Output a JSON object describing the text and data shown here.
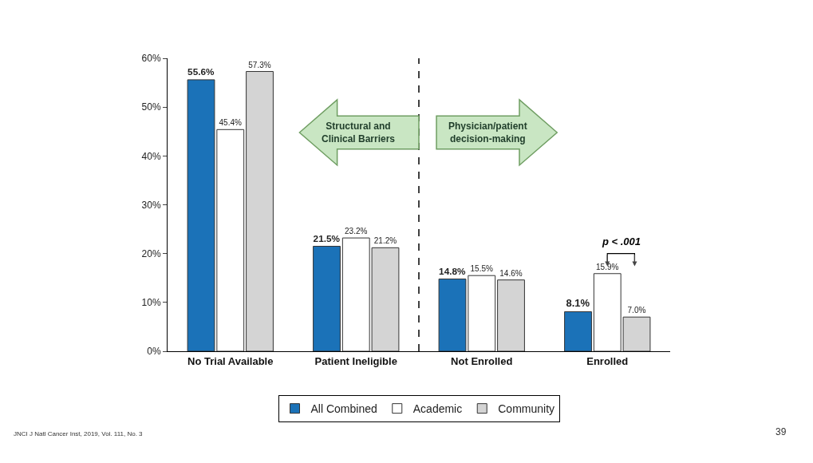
{
  "chart_data": {
    "type": "bar",
    "categories": [
      "No Trial Available",
      "Patient Ineligible",
      "Not Enrolled",
      "Enrolled"
    ],
    "series": [
      {
        "name": "All Combined",
        "color": "#1b72b8",
        "values": [
          55.6,
          21.5,
          14.8,
          8.1
        ],
        "value_labels": [
          "55.6%",
          "21.5%",
          "14.8%",
          "8.1%"
        ]
      },
      {
        "name": "Academic",
        "color": "#ffffff",
        "values": [
          45.4,
          23.2,
          15.5,
          15.9
        ],
        "value_labels": [
          "45.4%",
          "23.2%",
          "15.5%",
          "15.9%"
        ]
      },
      {
        "name": "Community",
        "color": "#d4d4d4",
        "values": [
          57.3,
          21.2,
          14.6,
          7.0
        ],
        "value_labels": [
          "57.3%",
          "21.2%",
          "14.6%",
          "7.0%"
        ]
      }
    ],
    "ylim": [
      0,
      60
    ],
    "yticks": [
      {
        "value": 0,
        "label": "0%"
      },
      {
        "value": 10,
        "label": "10%"
      },
      {
        "value": 20,
        "label": "20%"
      },
      {
        "value": 30,
        "label": "30%"
      },
      {
        "value": 40,
        "label": "40%"
      },
      {
        "value": 50,
        "label": "50%"
      },
      {
        "value": 60,
        "label": "60%"
      }
    ],
    "grid": false,
    "legend": "bottom",
    "annotations": [
      "Structural and\nClinical Barriers",
      "Physician/patient\ndecision-making",
      "p < .001",
      "JNCI J Natl Cancer Inst, 2019, Vol. 111, No. 3",
      "39"
    ]
  }
}
